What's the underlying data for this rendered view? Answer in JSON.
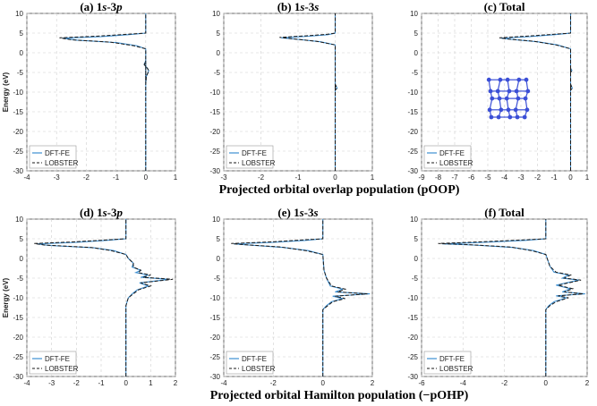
{
  "figure": {
    "row_labels": {
      "top": "Projected orbital overlap population (pOOP)",
      "bottom": "Projected orbital Hamilton population (−pOHP)"
    },
    "legend": [
      "DFT-FE",
      "LOBSTER"
    ],
    "colors": {
      "dftfe": "#3d8fd1",
      "lobster": "#1a1a1a",
      "molecule": "#3b4fd6"
    },
    "inset_icon": "molecular-structure-icon"
  },
  "chart_data": [
    {
      "id": "a",
      "type": "line",
      "title_prefix": "(a) 1",
      "title_it1": "s",
      "title_mid": "-3",
      "title_it2": "p",
      "xlabel": "",
      "ylabel": "Energy (eV)",
      "xlim": [
        -4,
        1
      ],
      "ylim": [
        -30,
        10
      ],
      "xticks": [
        -4,
        -3,
        -2,
        -1,
        0,
        1
      ],
      "yticks": [
        10,
        5,
        0,
        -5,
        -10,
        -15,
        -20,
        -25,
        -30
      ],
      "series": [
        {
          "name": "DFT-FE",
          "points": [
            [
              0,
              -30
            ],
            [
              0,
              -2
            ],
            [
              -0.05,
              -3
            ],
            [
              0.06,
              -4
            ],
            [
              0.1,
              -4.5
            ],
            [
              0.08,
              -5
            ],
            [
              0.02,
              -6
            ],
            [
              0,
              -8
            ],
            [
              0,
              1
            ],
            [
              -0.3,
              1.8
            ],
            [
              -1.0,
              2.6
            ],
            [
              -2.3,
              3.2
            ],
            [
              -2.8,
              3.7
            ],
            [
              -1.5,
              4.1
            ],
            [
              -0.6,
              4.6
            ],
            [
              0,
              5
            ],
            [
              0,
              10
            ]
          ]
        },
        {
          "name": "LOBSTER",
          "points": [
            [
              0,
              -30
            ],
            [
              0,
              -2
            ],
            [
              -0.05,
              -3
            ],
            [
              0.06,
              -4
            ],
            [
              0.1,
              -4.5
            ],
            [
              0.08,
              -5
            ],
            [
              0.02,
              -6
            ],
            [
              0,
              -8
            ],
            [
              0,
              1
            ],
            [
              -0.4,
              1.8
            ],
            [
              -1.2,
              2.7
            ],
            [
              -2.5,
              3.3
            ],
            [
              -2.9,
              3.8
            ],
            [
              -1.7,
              4.2
            ],
            [
              -0.6,
              4.7
            ],
            [
              0,
              5
            ],
            [
              0,
              10
            ]
          ]
        }
      ]
    },
    {
      "id": "b",
      "type": "line",
      "title_prefix": "(b) 1",
      "title_it1": "s",
      "title_mid": "-3",
      "title_it2": "s",
      "xlabel": "",
      "ylabel": "",
      "xlim": [
        -3,
        1
      ],
      "ylim": [
        -30,
        10
      ],
      "xticks": [
        -3,
        -2,
        -1,
        0,
        1
      ],
      "yticks": [
        10,
        5,
        0,
        -5,
        -10,
        -15,
        -20,
        -25,
        -30
      ],
      "series": [
        {
          "name": "DFT-FE",
          "points": [
            [
              0,
              -30
            ],
            [
              0,
              -8
            ],
            [
              0.05,
              -9
            ],
            [
              0,
              -9.5
            ],
            [
              0,
              2
            ],
            [
              -0.4,
              2.8
            ],
            [
              -1.0,
              3.4
            ],
            [
              -1.45,
              3.8
            ],
            [
              -0.7,
              4.2
            ],
            [
              -0.2,
              4.6
            ],
            [
              0,
              5
            ],
            [
              0,
              10
            ]
          ]
        },
        {
          "name": "LOBSTER",
          "points": [
            [
              0,
              -30
            ],
            [
              0,
              -8
            ],
            [
              0.05,
              -9
            ],
            [
              0,
              -9.5
            ],
            [
              0,
              2
            ],
            [
              -0.5,
              2.9
            ],
            [
              -1.1,
              3.5
            ],
            [
              -1.5,
              3.9
            ],
            [
              -0.8,
              4.3
            ],
            [
              -0.2,
              4.7
            ],
            [
              0,
              5
            ],
            [
              0,
              10
            ]
          ]
        }
      ]
    },
    {
      "id": "c",
      "type": "line",
      "title_prefix": "(c) Total",
      "title_it1": "",
      "title_mid": "",
      "title_it2": "",
      "xlabel": "",
      "ylabel": "",
      "xlim": [
        -9,
        1
      ],
      "ylim": [
        -30,
        10
      ],
      "xticks": [
        -9,
        -8,
        -7,
        -6,
        -5,
        -4,
        -3,
        -2,
        -1,
        0,
        1
      ],
      "yticks": [
        10,
        5,
        0,
        -5,
        -10,
        -15,
        -20,
        -25,
        -30
      ],
      "series": [
        {
          "name": "DFT-FE",
          "points": [
            [
              0,
              -30
            ],
            [
              0,
              -8
            ],
            [
              0.1,
              -9
            ],
            [
              0,
              -9.5
            ],
            [
              0,
              -4
            ],
            [
              0.08,
              -4.5
            ],
            [
              0,
              -5
            ],
            [
              0,
              1
            ],
            [
              -0.8,
              2
            ],
            [
              -2.0,
              2.8
            ],
            [
              -3.6,
              3.4
            ],
            [
              -4.2,
              3.7
            ],
            [
              -2.5,
              4.1
            ],
            [
              -1.0,
              4.6
            ],
            [
              0,
              5
            ],
            [
              0,
              10
            ]
          ]
        },
        {
          "name": "LOBSTER",
          "points": [
            [
              0,
              -30
            ],
            [
              0,
              -8
            ],
            [
              0.1,
              -9
            ],
            [
              0,
              -9.5
            ],
            [
              0,
              -4
            ],
            [
              0.08,
              -4.5
            ],
            [
              0,
              -5
            ],
            [
              0,
              1
            ],
            [
              -0.9,
              2
            ],
            [
              -2.2,
              2.9
            ],
            [
              -3.8,
              3.5
            ],
            [
              -4.3,
              3.8
            ],
            [
              -2.7,
              4.2
            ],
            [
              -1.0,
              4.7
            ],
            [
              0,
              5
            ],
            [
              0,
              10
            ]
          ]
        }
      ]
    },
    {
      "id": "d",
      "type": "line",
      "title_prefix": "(d) 1",
      "title_it1": "s",
      "title_mid": "-3",
      "title_it2": "p",
      "xlabel": "",
      "ylabel": "Energy (eV)",
      "xlim": [
        -4,
        2
      ],
      "ylim": [
        -30,
        10
      ],
      "xticks": [
        -4,
        -3,
        -2,
        -1,
        0,
        1,
        2
      ],
      "yticks": [
        10,
        5,
        0,
        -5,
        -10,
        -15,
        -20,
        -25,
        -30
      ],
      "series": [
        {
          "name": "DFT-FE",
          "points": [
            [
              0,
              -30
            ],
            [
              0,
              -12
            ],
            [
              0.05,
              -11
            ],
            [
              0.1,
              -10
            ],
            [
              0.25,
              -9
            ],
            [
              0.45,
              -8
            ],
            [
              0.9,
              -7
            ],
            [
              0.55,
              -6.2
            ],
            [
              1.75,
              -5.3
            ],
            [
              0.6,
              -4.8
            ],
            [
              0.9,
              -4.2
            ],
            [
              0.4,
              -3.6
            ],
            [
              0.6,
              -3
            ],
            [
              0.25,
              -2.2
            ],
            [
              0.3,
              -1.2
            ],
            [
              0.1,
              0
            ],
            [
              0,
              1
            ],
            [
              -0.5,
              2
            ],
            [
              -1.3,
              2.7
            ],
            [
              -3.1,
              3.3
            ],
            [
              -3.6,
              3.7
            ],
            [
              -2.0,
              4.1
            ],
            [
              -0.8,
              4.6
            ],
            [
              0,
              5
            ],
            [
              0,
              10
            ]
          ]
        },
        {
          "name": "LOBSTER",
          "points": [
            [
              0,
              -30
            ],
            [
              0,
              -12
            ],
            [
              0.05,
              -11
            ],
            [
              0.1,
              -10
            ],
            [
              0.3,
              -9
            ],
            [
              0.5,
              -8
            ],
            [
              1.0,
              -7
            ],
            [
              0.6,
              -6.2
            ],
            [
              1.9,
              -5.3
            ],
            [
              0.7,
              -4.8
            ],
            [
              1.0,
              -4.2
            ],
            [
              0.5,
              -3.6
            ],
            [
              0.6,
              -3
            ],
            [
              0.3,
              -2.2
            ],
            [
              0.3,
              -1.2
            ],
            [
              0.1,
              0
            ],
            [
              0,
              1
            ],
            [
              -0.6,
              2
            ],
            [
              -1.4,
              2.8
            ],
            [
              -3.3,
              3.4
            ],
            [
              -3.7,
              3.8
            ],
            [
              -2.1,
              4.2
            ],
            [
              -0.8,
              4.7
            ],
            [
              0,
              5
            ],
            [
              0,
              10
            ]
          ]
        }
      ]
    },
    {
      "id": "e",
      "type": "line",
      "title_prefix": "(e) 1",
      "title_it1": "s",
      "title_mid": "-3",
      "title_it2": "s",
      "xlabel": "",
      "ylabel": "",
      "xlim": [
        -4,
        2
      ],
      "ylim": [
        -30,
        10
      ],
      "xticks": [
        -4,
        -2,
        0,
        2
      ],
      "yticks": [
        10,
        5,
        0,
        -5,
        -10,
        -15,
        -20,
        -25,
        -30
      ],
      "series": [
        {
          "name": "DFT-FE",
          "points": [
            [
              0,
              -30
            ],
            [
              0,
              -13
            ],
            [
              0.15,
              -12
            ],
            [
              0.35,
              -11
            ],
            [
              0.8,
              -10.2
            ],
            [
              0.4,
              -9.6
            ],
            [
              1.9,
              -9
            ],
            [
              0.5,
              -8.5
            ],
            [
              0.8,
              -7.8
            ],
            [
              0.3,
              -7
            ],
            [
              0.15,
              -5
            ],
            [
              0.05,
              -3
            ],
            [
              0,
              1
            ],
            [
              -0.6,
              2
            ],
            [
              -1.6,
              2.8
            ],
            [
              -3.0,
              3.4
            ],
            [
              -3.6,
              3.7
            ],
            [
              -2.0,
              4.1
            ],
            [
              -0.7,
              4.6
            ],
            [
              0,
              5
            ],
            [
              0,
              10
            ]
          ]
        },
        {
          "name": "LOBSTER",
          "points": [
            [
              0,
              -30
            ],
            [
              0,
              -13
            ],
            [
              0.2,
              -12
            ],
            [
              0.4,
              -11
            ],
            [
              0.9,
              -10.2
            ],
            [
              0.5,
              -9.6
            ],
            [
              1.8,
              -9
            ],
            [
              0.6,
              -8.5
            ],
            [
              0.9,
              -7.8
            ],
            [
              0.35,
              -7
            ],
            [
              0.15,
              -5
            ],
            [
              0.05,
              -3
            ],
            [
              0,
              1
            ],
            [
              -0.7,
              2
            ],
            [
              -1.7,
              2.9
            ],
            [
              -3.2,
              3.5
            ],
            [
              -3.7,
              3.8
            ],
            [
              -2.1,
              4.2
            ],
            [
              -0.8,
              4.7
            ],
            [
              0,
              5
            ],
            [
              0,
              10
            ]
          ]
        }
      ]
    },
    {
      "id": "f",
      "type": "line",
      "title_prefix": "(f) Total",
      "title_it1": "",
      "title_mid": "",
      "title_it2": "",
      "xlabel": "",
      "ylabel": "",
      "xlim": [
        -6,
        2
      ],
      "ylim": [
        -30,
        10
      ],
      "xticks": [
        -6,
        -4,
        -2,
        0,
        2
      ],
      "yticks": [
        10,
        5,
        0,
        -5,
        -10,
        -15,
        -20,
        -25,
        -30
      ],
      "series": [
        {
          "name": "DFT-FE",
          "points": [
            [
              0,
              -30
            ],
            [
              0,
              -13
            ],
            [
              0.15,
              -12
            ],
            [
              0.4,
              -11
            ],
            [
              1.0,
              -10
            ],
            [
              0.5,
              -9.5
            ],
            [
              1.9,
              -9
            ],
            [
              0.8,
              -8.5
            ],
            [
              1.2,
              -7.7
            ],
            [
              0.5,
              -6.8
            ],
            [
              1.6,
              -5.5
            ],
            [
              0.8,
              -5
            ],
            [
              1.1,
              -4.2
            ],
            [
              0.4,
              -3.5
            ],
            [
              0.2,
              -2
            ],
            [
              0,
              1
            ],
            [
              -0.6,
              2
            ],
            [
              -1.6,
              2.8
            ],
            [
              -3.5,
              3.4
            ],
            [
              -5.0,
              3.7
            ],
            [
              -3.0,
              4.1
            ],
            [
              -1.0,
              4.6
            ],
            [
              0,
              5
            ],
            [
              0,
              10
            ]
          ]
        },
        {
          "name": "LOBSTER",
          "points": [
            [
              0,
              -30
            ],
            [
              0,
              -13
            ],
            [
              0.2,
              -12
            ],
            [
              0.5,
              -11
            ],
            [
              1.1,
              -10
            ],
            [
              0.6,
              -9.5
            ],
            [
              1.8,
              -9
            ],
            [
              0.9,
              -8.5
            ],
            [
              1.3,
              -7.7
            ],
            [
              0.6,
              -6.8
            ],
            [
              1.7,
              -5.5
            ],
            [
              0.9,
              -5
            ],
            [
              1.2,
              -4.2
            ],
            [
              0.5,
              -3.5
            ],
            [
              0.2,
              -2
            ],
            [
              0,
              1
            ],
            [
              -0.7,
              2
            ],
            [
              -1.7,
              2.9
            ],
            [
              -3.7,
              3.5
            ],
            [
              -5.2,
              3.8
            ],
            [
              -3.2,
              4.2
            ],
            [
              -1.1,
              4.7
            ],
            [
              0,
              5
            ],
            [
              0,
              10
            ]
          ]
        }
      ]
    }
  ]
}
